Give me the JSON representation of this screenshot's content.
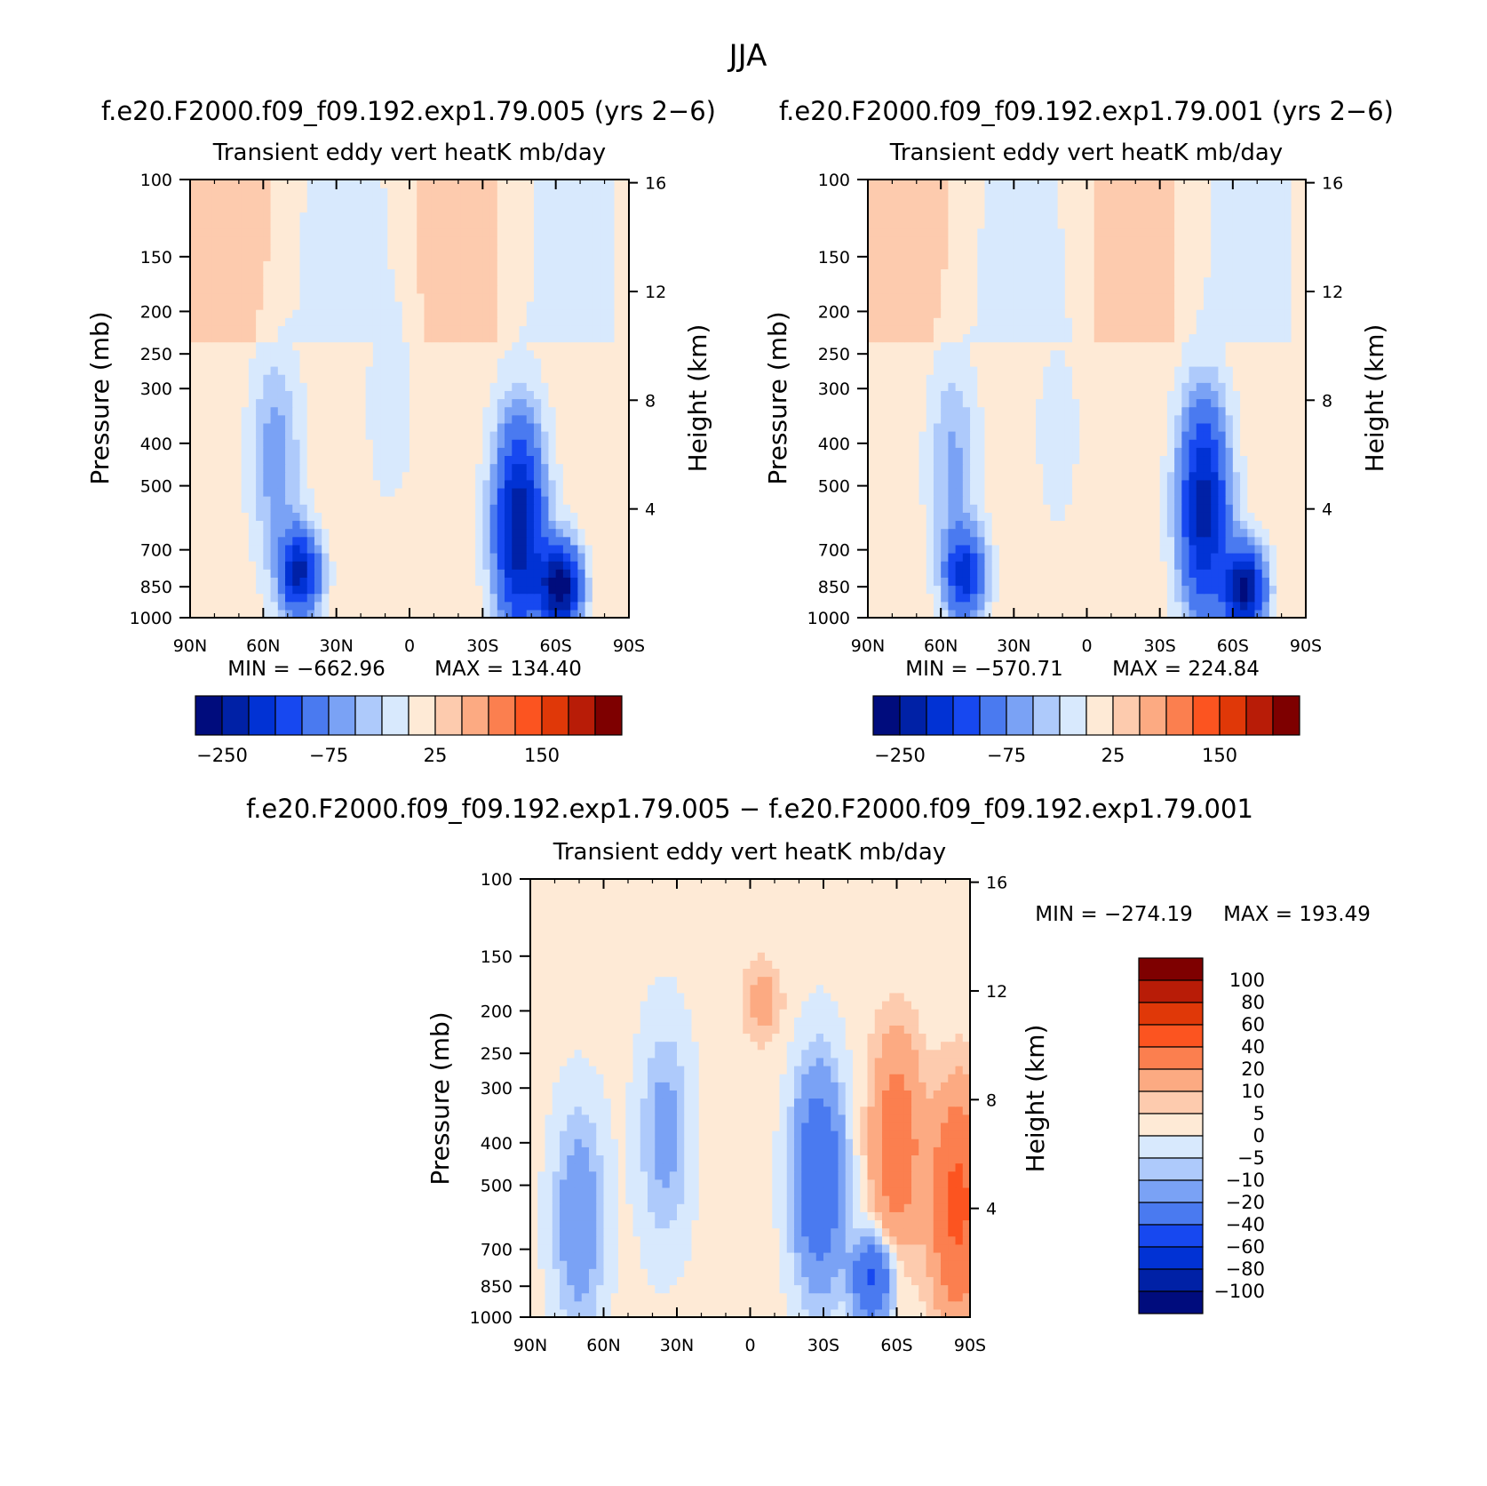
{
  "page_title": "JJA",
  "diff_case_title": "f.e20.F2000.f09_f09.192.exp1.79.005 − f.e20.F2000.f09_f09.192.exp1.79.001",
  "chart_data": [
    {
      "id": "panel1",
      "type": "heatmap",
      "case_title": "f.e20.F2000.f09_f09.192.exp1.79.005 (yrs 2−6)",
      "title": "Transient eddy vert heatK mb/day",
      "ylabel": "Pressure (mb)",
      "y2label": "Height (km)",
      "x_ticks": [
        "90N",
        "60N",
        "30N",
        "0",
        "30S",
        "60S",
        "90S"
      ],
      "y_ticks": [
        100,
        150,
        200,
        250,
        300,
        400,
        500,
        700,
        850,
        1000
      ],
      "y2_ticks": [
        4,
        8,
        12,
        16
      ],
      "min_label": "MIN = −662.96",
      "max_label": "MAX = 134.40",
      "colorbar_labels": [
        "−250",
        "−75",
        "25",
        "150"
      ],
      "levels": [
        -300,
        -250,
        -200,
        -150,
        -100,
        -75,
        -50,
        -25,
        0,
        25,
        50,
        75,
        100,
        125,
        150,
        200,
        250
      ],
      "features": [
        {
          "lat": 45,
          "p": 790,
          "min": -250,
          "kind": "blob"
        },
        {
          "lat": 55,
          "p": 430,
          "min": -80,
          "kind": "column"
        },
        {
          "lat": 8,
          "p": 320,
          "min": -30,
          "kind": "column"
        },
        {
          "lat": -45,
          "p": 620,
          "min": -280,
          "kind": "column"
        },
        {
          "lat": -62,
          "p": 850,
          "min": -330,
          "kind": "blob"
        }
      ]
    },
    {
      "id": "panel2",
      "type": "heatmap",
      "case_title": "f.e20.F2000.f09_f09.192.exp1.79.001 (yrs 2−6)",
      "title": "Transient eddy vert heatK mb/day",
      "ylabel": "Pressure (mb)",
      "y2label": "Height (km)",
      "x_ticks": [
        "90N",
        "60N",
        "30N",
        "0",
        "30S",
        "60S",
        "90S"
      ],
      "y_ticks": [
        100,
        150,
        200,
        250,
        300,
        400,
        500,
        700,
        850,
        1000
      ],
      "y2_ticks": [
        4,
        8,
        12,
        16
      ],
      "min_label": "MIN = −570.71",
      "max_label": "MAX = 224.84",
      "colorbar_labels": [
        "−250",
        "−75",
        "25",
        "150"
      ],
      "levels": [
        -300,
        -250,
        -200,
        -150,
        -100,
        -75,
        -50,
        -25,
        0,
        25,
        50,
        75,
        100,
        125,
        150,
        200,
        250
      ],
      "features": [
        {
          "lat": 50,
          "p": 800,
          "min": -210,
          "kind": "blob"
        },
        {
          "lat": 55,
          "p": 450,
          "min": -70,
          "kind": "column"
        },
        {
          "lat": -48,
          "p": 560,
          "min": -260,
          "kind": "column"
        },
        {
          "lat": -65,
          "p": 860,
          "min": -300,
          "kind": "blob"
        },
        {
          "lat": 12,
          "p": 380,
          "min": -25,
          "kind": "column"
        }
      ]
    },
    {
      "id": "panel3",
      "type": "heatmap",
      "title": "Transient eddy vert heatK mb/day",
      "ylabel": "Pressure (mb)",
      "y2label": "Height (km)",
      "x_ticks": [
        "90N",
        "60N",
        "30N",
        "0",
        "30S",
        "60S",
        "90S"
      ],
      "y_ticks": [
        100,
        150,
        200,
        250,
        300,
        400,
        500,
        700,
        850,
        1000
      ],
      "y2_ticks": [
        4,
        8,
        12,
        16
      ],
      "min_label": "MIN = −274.19",
      "max_label": "MAX = 193.49",
      "colorbar_labels": [
        "100",
        "80",
        "60",
        "40",
        "20",
        "10",
        "5",
        "0",
        "−5",
        "−10",
        "−20",
        "−40",
        "−60",
        "−80",
        "−100"
      ],
      "levels": [
        -100,
        -80,
        -60,
        -40,
        -20,
        -10,
        -5,
        0,
        5,
        10,
        20,
        40,
        60,
        80,
        100
      ],
      "features": [
        {
          "lat": -60,
          "p": 400,
          "max": 30,
          "kind": "column"
        },
        {
          "lat": -85,
          "p": 550,
          "max": 45,
          "kind": "column"
        },
        {
          "lat": -50,
          "p": 820,
          "min": -45,
          "kind": "blob"
        },
        {
          "lat": -28,
          "p": 480,
          "min": -40,
          "kind": "column"
        },
        {
          "lat": -5,
          "p": 190,
          "max": 12,
          "kind": "blob"
        },
        {
          "lat": 70,
          "p": 600,
          "min": -20,
          "kind": "column"
        },
        {
          "lat": 35,
          "p": 380,
          "min": -15,
          "kind": "column"
        }
      ]
    }
  ],
  "palette": {
    "full": [
      "#000c7d",
      "#0021a6",
      "#0132d4",
      "#1748f0",
      "#4a7af0",
      "#7aa2f5",
      "#aecafb",
      "#d8e9fd",
      "#feead6",
      "#fdcbae",
      "#fcaa82",
      "#fb7f4f",
      "#fc5420",
      "#e03808",
      "#b81c07",
      "#7e0000"
    ],
    "diff": [
      "#000c7d",
      "#0021a6",
      "#0132d4",
      "#1748f0",
      "#4a7af0",
      "#7aa2f5",
      "#aecafb",
      "#d8e9fd",
      "#feead6",
      "#fdcbae",
      "#fcaa82",
      "#fb7f4f",
      "#fc5420",
      "#e03808",
      "#b81c07",
      "#7e0000"
    ]
  }
}
